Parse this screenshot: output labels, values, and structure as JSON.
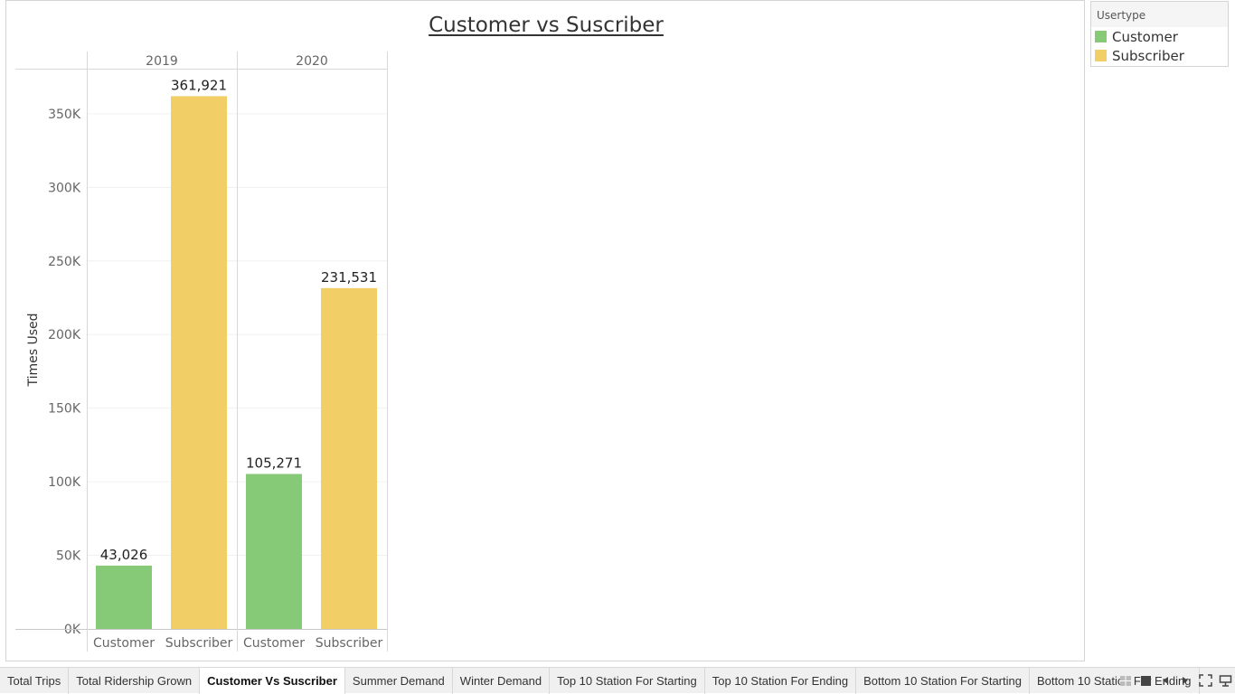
{
  "title": "Customer vs Suscriber",
  "legend": {
    "title": "Usertype",
    "items": [
      {
        "label": "Customer",
        "color": "#86c976"
      },
      {
        "label": "Subscriber",
        "color": "#f2cf66"
      }
    ]
  },
  "chart_data": {
    "type": "bar",
    "title": "Customer vs Suscriber",
    "ylabel": "Times Used",
    "xlabel": "",
    "ylim": [
      0,
      380000
    ],
    "y_ticks": [
      "0K",
      "50K",
      "100K",
      "150K",
      "200K",
      "250K",
      "300K",
      "350K"
    ],
    "groups": [
      {
        "name": "2019",
        "bars": [
          {
            "category": "Customer",
            "value": 43026,
            "label": "43,026"
          },
          {
            "category": "Subscriber",
            "value": 361921,
            "label": "361,921"
          }
        ]
      },
      {
        "name": "2020",
        "bars": [
          {
            "category": "Customer",
            "value": 105271,
            "label": "105,271"
          },
          {
            "category": "Subscriber",
            "value": 231531,
            "label": "231,531"
          }
        ]
      }
    ],
    "colors": {
      "Customer": "#86c976",
      "Subscriber": "#f2cf66"
    },
    "grid": true,
    "legend_position": "top-right"
  },
  "tabs": [
    {
      "label": "Total Trips",
      "active": false
    },
    {
      "label": "Total Ridership Grown",
      "active": false
    },
    {
      "label": "Customer Vs Suscriber",
      "active": true
    },
    {
      "label": "Summer Demand",
      "active": false
    },
    {
      "label": "Winter Demand",
      "active": false
    },
    {
      "label": "Top 10 Station For Starting",
      "active": false
    },
    {
      "label": "Top 10 Station For Ending",
      "active": false
    },
    {
      "label": "Bottom 10 Station For Starting",
      "active": false
    },
    {
      "label": "Bottom 10 Station For Ending",
      "active": false
    }
  ],
  "nav_icons": [
    "grid-view-icon",
    "filmstrip-icon",
    "prev-tab-icon",
    "next-tab-icon",
    "fullscreen-icon",
    "presentation-icon"
  ]
}
